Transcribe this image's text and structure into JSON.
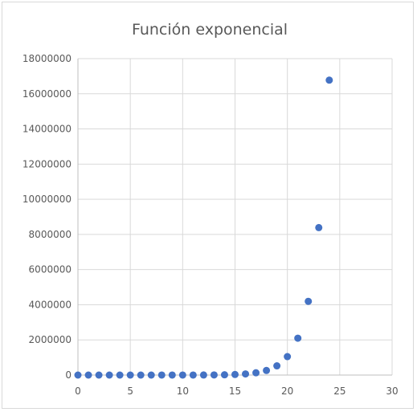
{
  "chart_data": {
    "type": "scatter",
    "title": "Función exponencial",
    "xlabel": "",
    "ylabel": "",
    "xlim": [
      0,
      30
    ],
    "ylim": [
      0,
      18000000
    ],
    "xticks": [
      0,
      5,
      10,
      15,
      20,
      25,
      30
    ],
    "yticks": [
      0,
      2000000,
      4000000,
      6000000,
      8000000,
      10000000,
      12000000,
      14000000,
      16000000,
      18000000
    ],
    "grid": true,
    "legend": "none",
    "marker_color": "#4472c4",
    "series": [
      {
        "x": [
          0,
          1,
          2,
          3,
          4,
          5,
          6,
          7,
          8,
          9,
          10,
          11,
          12,
          13,
          14,
          15,
          16,
          17,
          18,
          19,
          20,
          21,
          22,
          23,
          24
        ],
        "y": [
          1,
          2,
          4,
          8,
          16,
          32,
          64,
          128,
          256,
          512,
          1024,
          2048,
          4096,
          8192,
          16384,
          32768,
          65536,
          131072,
          262144,
          524288,
          1048576,
          2097152,
          4194304,
          8388608,
          16777216
        ]
      }
    ]
  }
}
